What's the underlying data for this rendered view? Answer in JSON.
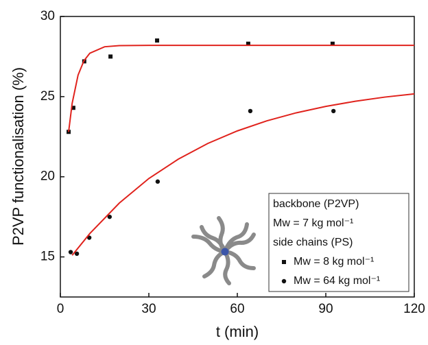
{
  "chart_data": {
    "type": "scatter",
    "x_label": "t  (min)",
    "y_label": "P2VP functionalisation (%)",
    "xlim": [
      0,
      120
    ],
    "xticks": [
      0,
      30,
      60,
      90,
      120
    ],
    "ylim": [
      12.5,
      30
    ],
    "yticks": [
      15,
      20,
      25,
      30
    ],
    "legend_header": [
      "backbone (P2VP)",
      "Mw = 7 kg mol⁻¹",
      "side chains (PS)"
    ],
    "legend_position": "lower right",
    "series": [
      {
        "name": "Mw = 8 kg mol⁻¹",
        "marker": "square",
        "color": "#111111",
        "x": [
          2.8,
          4.4,
          8.1,
          17,
          32.8,
          63.7,
          92.3
        ],
        "values": [
          22.8,
          24.3,
          27.2,
          27.5,
          28.5,
          28.3,
          28.3
        ]
      },
      {
        "name": "Mw = 64 kg mol⁻¹",
        "marker": "circle",
        "color": "#111111",
        "x": [
          3.5,
          5.6,
          9.8,
          16.7,
          33,
          64.4,
          92.6
        ],
        "values": [
          15.3,
          15.2,
          16.2,
          17.5,
          19.7,
          24.1,
          24.1
        ]
      },
      {
        "marker": "line",
        "color": "#e0221c",
        "x": [
          2.8,
          4,
          6,
          8,
          10,
          15,
          20,
          30,
          60,
          90,
          120
        ],
        "values": [
          22.8,
          24.58,
          26.34,
          27.24,
          27.71,
          28.11,
          28.18,
          28.2,
          28.2,
          28.2,
          28.2
        ]
      },
      {
        "marker": "line",
        "color": "#e0221c",
        "x": [
          4,
          10,
          20,
          30,
          40,
          50,
          60,
          70,
          80,
          90,
          100,
          110,
          120
        ],
        "values": [
          15.1,
          16.46,
          18.36,
          19.89,
          21.1,
          22.08,
          22.86,
          23.49,
          23.99,
          24.39,
          24.71,
          24.97,
          25.17
        ]
      }
    ]
  }
}
